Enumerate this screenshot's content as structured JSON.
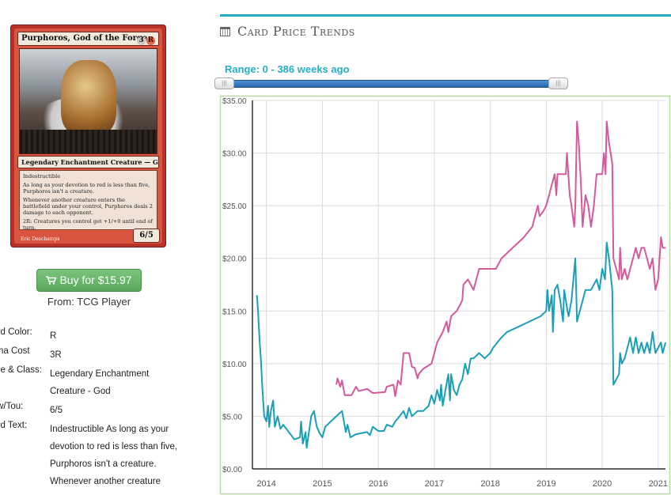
{
  "card": {
    "name": "Purphoros, God of the Forge",
    "mana_cost_symbols": [
      "3",
      "R"
    ],
    "type_line": "Legendary Enchantment Creature — God",
    "rules_text": [
      "Indestructible",
      "As long as your devotion to red is less than five, Purphoros isn't a creature.",
      "Whenever another creature enters the battlefield under your control, Purphoros deals 2 damage to each opponent.",
      "2R: Creatures you control get +1/+0 until end of turn."
    ],
    "artist": "Eric Deschamps",
    "power_toughness": "6/5"
  },
  "buy": {
    "label": "Buy for $15.97",
    "from": "From: TCG Player"
  },
  "details": [
    {
      "label": "Card Color:",
      "value": "R"
    },
    {
      "label": "Mana Cost",
      "value": "3R"
    },
    {
      "label": "Type & Class:",
      "value": "Legendary Enchantment Creature - God"
    },
    {
      "label": "Pow/Tou:",
      "value": "6/5"
    },
    {
      "label": "Card Text:",
      "value": "Indestructible As long as your devotion to red is less than five, Purphoros isn't a creature. Whenever another creature"
    }
  ],
  "panel": {
    "title": "Card Price Trends",
    "range_label": "Range: 0 - 386 weeks ago",
    "slider_handle_glyph": "|||"
  },
  "chart_data": {
    "type": "line",
    "title": "",
    "xlabel": "",
    "ylabel": "",
    "xlim": [
      2013.75,
      2021.13
    ],
    "ylim": [
      0,
      35
    ],
    "x_ticks": [
      "2014",
      "2015",
      "2016",
      "2017",
      "2018",
      "2019",
      "2020",
      "2021"
    ],
    "y_ticks": [
      "$0.00",
      "$5.00",
      "$10.00",
      "$15.00",
      "$20.00",
      "$25.00",
      "$30.00",
      "$35.00"
    ],
    "grid": true,
    "series": [
      {
        "color": "#d35a9b",
        "points": [
          [
            2015.25,
            8.0
          ],
          [
            2015.27,
            8.6
          ],
          [
            2015.32,
            7.8
          ],
          [
            2015.35,
            8.4
          ],
          [
            2015.4,
            7.0
          ],
          [
            2015.52,
            7.0
          ],
          [
            2015.6,
            7.8
          ],
          [
            2015.65,
            7.4
          ],
          [
            2015.8,
            7.6
          ],
          [
            2015.9,
            7.2
          ],
          [
            2016.12,
            7.3
          ],
          [
            2016.15,
            7.8
          ],
          [
            2016.27,
            8.0
          ],
          [
            2016.3,
            6.9
          ],
          [
            2016.35,
            8.4
          ],
          [
            2016.4,
            8.0
          ],
          [
            2016.45,
            11.0
          ],
          [
            2016.55,
            11.0
          ],
          [
            2016.6,
            9.7
          ],
          [
            2016.65,
            9.6
          ],
          [
            2016.7,
            8.6
          ],
          [
            2016.72,
            9.0
          ],
          [
            2016.8,
            9.5
          ],
          [
            2016.95,
            10.0
          ],
          [
            2017.0,
            11.0
          ],
          [
            2017.05,
            12.0
          ],
          [
            2017.15,
            13.0
          ],
          [
            2017.22,
            14.0
          ],
          [
            2017.25,
            13.0
          ],
          [
            2017.3,
            14.5
          ],
          [
            2017.4,
            15.0
          ],
          [
            2017.5,
            16.0
          ],
          [
            2017.52,
            17.5
          ],
          [
            2017.6,
            18.0
          ],
          [
            2017.7,
            17.0
          ],
          [
            2017.8,
            19.0
          ],
          [
            2018.0,
            19.0
          ],
          [
            2018.1,
            19.0
          ],
          [
            2018.2,
            20.0
          ],
          [
            2018.4,
            21.0
          ],
          [
            2018.6,
            22.0
          ],
          [
            2018.75,
            23.0
          ],
          [
            2018.85,
            25.0
          ],
          [
            2018.88,
            24.0
          ],
          [
            2018.95,
            24.5
          ],
          [
            2019.0,
            25.0
          ],
          [
            2019.05,
            26.0
          ],
          [
            2019.1,
            27.0
          ],
          [
            2019.15,
            28.0
          ],
          [
            2019.18,
            26.0
          ],
          [
            2019.2,
            28.0
          ],
          [
            2019.35,
            28.0
          ],
          [
            2019.37,
            30.0
          ],
          [
            2019.42,
            26.0
          ],
          [
            2019.45,
            25.0
          ],
          [
            2019.5,
            23.0
          ],
          [
            2019.52,
            25.0
          ],
          [
            2019.55,
            33.0
          ],
          [
            2019.58,
            31.0
          ],
          [
            2019.62,
            27.0
          ],
          [
            2019.65,
            23.0
          ],
          [
            2019.7,
            26.0
          ],
          [
            2019.75,
            25.0
          ],
          [
            2019.8,
            23.0
          ],
          [
            2019.85,
            25.0
          ],
          [
            2019.9,
            28.0
          ],
          [
            2019.95,
            28.0
          ],
          [
            2020.0,
            28.0
          ],
          [
            2020.03,
            30.0
          ],
          [
            2020.06,
            28.0
          ],
          [
            2020.08,
            33.0
          ],
          [
            2020.12,
            31.0
          ],
          [
            2020.15,
            30.0
          ],
          [
            2020.18,
            29.0
          ],
          [
            2020.2,
            20.0
          ],
          [
            2020.25,
            19.0
          ],
          [
            2020.3,
            18.0
          ],
          [
            2020.32,
            21.0
          ],
          [
            2020.35,
            18.0
          ],
          [
            2020.4,
            19.0
          ],
          [
            2020.45,
            18.0
          ],
          [
            2020.5,
            19.0
          ],
          [
            2020.55,
            20.0
          ],
          [
            2020.6,
            21.0
          ],
          [
            2020.65,
            20.0
          ],
          [
            2020.7,
            21.0
          ],
          [
            2020.75,
            21.0
          ],
          [
            2020.8,
            20.0
          ],
          [
            2020.85,
            19.0
          ],
          [
            2020.9,
            20.0
          ],
          [
            2020.95,
            17.0
          ],
          [
            2021.0,
            18.0
          ],
          [
            2021.05,
            22.0
          ],
          [
            2021.08,
            21.0
          ],
          [
            2021.13,
            21.0
          ]
        ]
      },
      {
        "color": "#1b9fb7",
        "points": [
          [
            2013.83,
            16.5
          ],
          [
            2013.85,
            15.0
          ],
          [
            2013.88,
            12.0
          ],
          [
            2013.9,
            10.5
          ],
          [
            2013.93,
            7.5
          ],
          [
            2013.96,
            5.0
          ],
          [
            2014.0,
            4.5
          ],
          [
            2014.03,
            6.0
          ],
          [
            2014.05,
            4.0
          ],
          [
            2014.08,
            5.5
          ],
          [
            2014.12,
            6.5
          ],
          [
            2014.15,
            4.0
          ],
          [
            2014.2,
            5.0
          ],
          [
            2014.25,
            3.8
          ],
          [
            2014.3,
            4.2
          ],
          [
            2014.4,
            3.5
          ],
          [
            2014.5,
            2.8
          ],
          [
            2014.6,
            3.0
          ],
          [
            2014.62,
            4.5
          ],
          [
            2014.65,
            2.4
          ],
          [
            2014.7,
            3.5
          ],
          [
            2014.72,
            2.0
          ],
          [
            2014.8,
            5.0
          ],
          [
            2014.85,
            5.5
          ],
          [
            2014.9,
            4.0
          ],
          [
            2014.95,
            3.4
          ],
          [
            2015.0,
            3.0
          ],
          [
            2015.05,
            4.0
          ],
          [
            2015.15,
            4.5
          ],
          [
            2015.25,
            5.0
          ],
          [
            2015.35,
            5.5
          ],
          [
            2015.42,
            3.5
          ],
          [
            2015.45,
            4.2
          ],
          [
            2015.5,
            3.0
          ],
          [
            2015.6,
            3.3
          ],
          [
            2015.8,
            3.5
          ],
          [
            2015.85,
            3.2
          ],
          [
            2015.9,
            4.0
          ],
          [
            2016.0,
            3.6
          ],
          [
            2016.1,
            3.6
          ],
          [
            2016.15,
            4.2
          ],
          [
            2016.25,
            4.0
          ],
          [
            2016.3,
            4.5
          ],
          [
            2016.35,
            4.8
          ],
          [
            2016.45,
            5.5
          ],
          [
            2016.5,
            4.8
          ],
          [
            2016.55,
            5.8
          ],
          [
            2016.6,
            5.0
          ],
          [
            2016.7,
            5.5
          ],
          [
            2016.8,
            5.5
          ],
          [
            2016.9,
            6.0
          ],
          [
            2016.95,
            7.0
          ],
          [
            2017.0,
            6.2
          ],
          [
            2017.05,
            7.5
          ],
          [
            2017.1,
            6.5
          ],
          [
            2017.12,
            8.0
          ],
          [
            2017.15,
            6.0
          ],
          [
            2017.2,
            7.5
          ],
          [
            2017.25,
            9.0
          ],
          [
            2017.28,
            6.5
          ],
          [
            2017.3,
            9.0
          ],
          [
            2017.35,
            7.5
          ],
          [
            2017.4,
            7.0
          ],
          [
            2017.45,
            8.0
          ],
          [
            2017.5,
            8.5
          ],
          [
            2017.55,
            10.0
          ],
          [
            2017.6,
            9.0
          ],
          [
            2017.65,
            10.5
          ],
          [
            2017.7,
            10.5
          ],
          [
            2017.8,
            11.0
          ],
          [
            2017.9,
            10.5
          ],
          [
            2018.0,
            11.0
          ],
          [
            2018.05,
            11.5
          ],
          [
            2018.2,
            12.5
          ],
          [
            2018.3,
            13.0
          ],
          [
            2018.5,
            13.5
          ],
          [
            2018.7,
            14.0
          ],
          [
            2018.9,
            14.5
          ],
          [
            2019.0,
            15.0
          ],
          [
            2019.02,
            17.0
          ],
          [
            2019.05,
            15.0
          ],
          [
            2019.1,
            16.5
          ],
          [
            2019.12,
            13.0
          ],
          [
            2019.15,
            17.0
          ],
          [
            2019.2,
            17.5
          ],
          [
            2019.25,
            16.0
          ],
          [
            2019.3,
            14.0
          ],
          [
            2019.32,
            17.0
          ],
          [
            2019.38,
            15.0
          ],
          [
            2019.4,
            14.5
          ],
          [
            2019.45,
            16.0
          ],
          [
            2019.52,
            20.0
          ],
          [
            2019.55,
            14.0
          ],
          [
            2019.6,
            15.0
          ],
          [
            2019.7,
            17.0
          ],
          [
            2019.8,
            17.0
          ],
          [
            2019.9,
            18.0
          ],
          [
            2019.95,
            17.0
          ],
          [
            2020.0,
            19.0
          ],
          [
            2020.05,
            18.0
          ],
          [
            2020.08,
            21.5
          ],
          [
            2020.12,
            20.0
          ],
          [
            2020.18,
            17.0
          ],
          [
            2020.2,
            8.0
          ],
          [
            2020.25,
            8.5
          ],
          [
            2020.3,
            9.0
          ],
          [
            2020.32,
            11.0
          ],
          [
            2020.35,
            10.0
          ],
          [
            2020.4,
            10.5
          ],
          [
            2020.5,
            12.5
          ],
          [
            2020.55,
            11.0
          ],
          [
            2020.6,
            12.5
          ],
          [
            2020.65,
            11.0
          ],
          [
            2020.7,
            12.0
          ],
          [
            2020.75,
            11.0
          ],
          [
            2020.8,
            12.0
          ],
          [
            2020.85,
            11.0
          ],
          [
            2020.9,
            13.0
          ],
          [
            2020.95,
            11.0
          ],
          [
            2021.0,
            11.5
          ],
          [
            2021.05,
            12.0
          ],
          [
            2021.08,
            11.0
          ],
          [
            2021.13,
            12.0
          ]
        ]
      }
    ]
  }
}
